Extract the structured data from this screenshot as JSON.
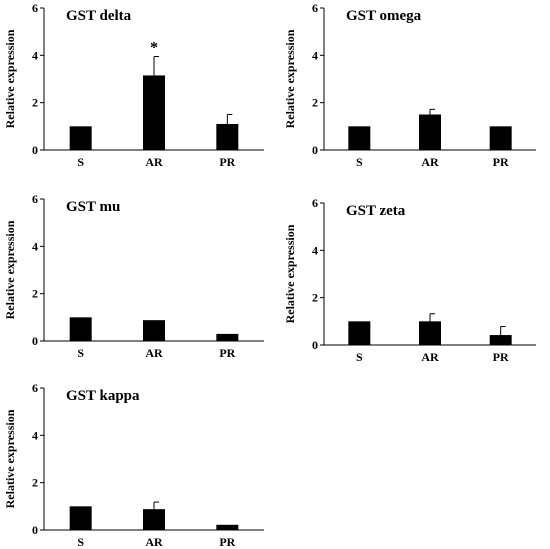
{
  "chart_data": [
    {
      "type": "bar",
      "title": "GST delta",
      "ylabel": "Relative expression",
      "categories": [
        "S",
        "AR",
        "PR"
      ],
      "values": [
        1.0,
        3.15,
        1.1
      ],
      "errors": [
        0.0,
        0.8,
        0.4
      ],
      "annotations": [
        "",
        "*",
        ""
      ],
      "ylim": [
        0,
        6
      ],
      "yticks": [
        0,
        2,
        4,
        6
      ],
      "grid": false,
      "bar_color": "#000000"
    },
    {
      "type": "bar",
      "title": "GST omega",
      "ylabel": "Relative expression",
      "categories": [
        "S",
        "AR",
        "PR"
      ],
      "values": [
        1.0,
        1.5,
        1.0
      ],
      "errors": [
        0.0,
        0.22,
        0.0
      ],
      "annotations": [
        "",
        "",
        ""
      ],
      "ylim": [
        0,
        6
      ],
      "yticks": [
        0,
        2,
        4,
        6
      ],
      "grid": false,
      "bar_color": "#000000"
    },
    {
      "type": "bar",
      "title": "GST mu",
      "ylabel": "Relative expression",
      "categories": [
        "S",
        "AR",
        "PR"
      ],
      "values": [
        1.0,
        0.88,
        0.3
      ],
      "errors": [
        0.0,
        0.0,
        0.0
      ],
      "annotations": [
        "",
        "",
        ""
      ],
      "ylim": [
        0,
        6
      ],
      "yticks": [
        0,
        2,
        4,
        6
      ],
      "grid": false,
      "bar_color": "#000000"
    },
    {
      "type": "bar",
      "title": "GST zeta",
      "ylabel": "Relative expression",
      "categories": [
        "S",
        "AR",
        "PR"
      ],
      "values": [
        1.0,
        1.0,
        0.42
      ],
      "errors": [
        0.0,
        0.32,
        0.36
      ],
      "annotations": [
        "",
        "",
        ""
      ],
      "ylim": [
        0,
        6
      ],
      "yticks": [
        0,
        2,
        4,
        6
      ],
      "grid": false,
      "bar_color": "#000000"
    },
    {
      "type": "bar",
      "title": "GST kappa",
      "ylabel": "Relative expression",
      "categories": [
        "S",
        "AR",
        "PR"
      ],
      "values": [
        1.0,
        0.88,
        0.22
      ],
      "errors": [
        0.0,
        0.3,
        0.0
      ],
      "annotations": [
        "",
        "",
        ""
      ],
      "ylim": [
        0,
        6
      ],
      "yticks": [
        0,
        2,
        4,
        6
      ],
      "grid": false,
      "bar_color": "#000000"
    }
  ]
}
